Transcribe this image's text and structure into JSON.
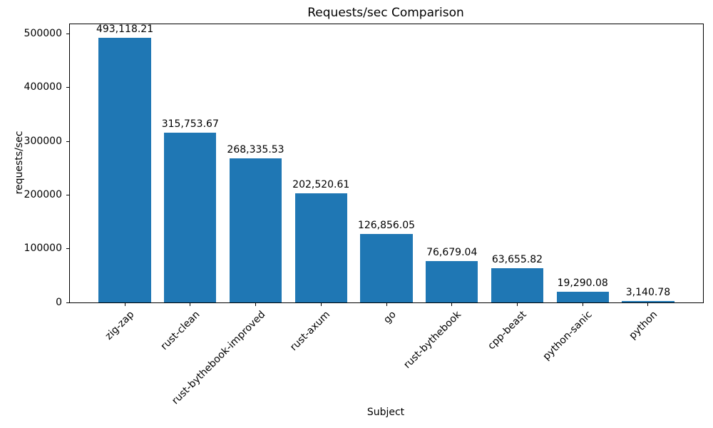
{
  "chart_data": {
    "type": "bar",
    "title": "Requests/sec Comparison",
    "xlabel": "Subject",
    "ylabel": "requests/sec",
    "categories": [
      "zig-zap",
      "rust-clean",
      "rust-bythebook-improved",
      "rust-axum",
      "go",
      "rust-bythebook",
      "cpp-beast",
      "python-sanic",
      "python"
    ],
    "values": [
      493118.21,
      315753.67,
      268335.53,
      202520.61,
      126856.05,
      76679.04,
      63655.82,
      19290.08,
      3140.78
    ],
    "value_labels": [
      "493,118.21",
      "315,753.67",
      "268,335.53",
      "202,520.61",
      "126,856.05",
      "76,679.04",
      "63,655.82",
      "19,290.08",
      "3,140.78"
    ],
    "yticks": [
      0,
      100000,
      200000,
      300000,
      400000,
      500000
    ],
    "ytick_labels": [
      "0",
      "100000",
      "200000",
      "300000",
      "400000",
      "500000"
    ],
    "ylim": [
      0,
      517774
    ],
    "bar_color": "#1f77b4",
    "x_tick_rotation": 45,
    "grid": false,
    "legend": false
  }
}
